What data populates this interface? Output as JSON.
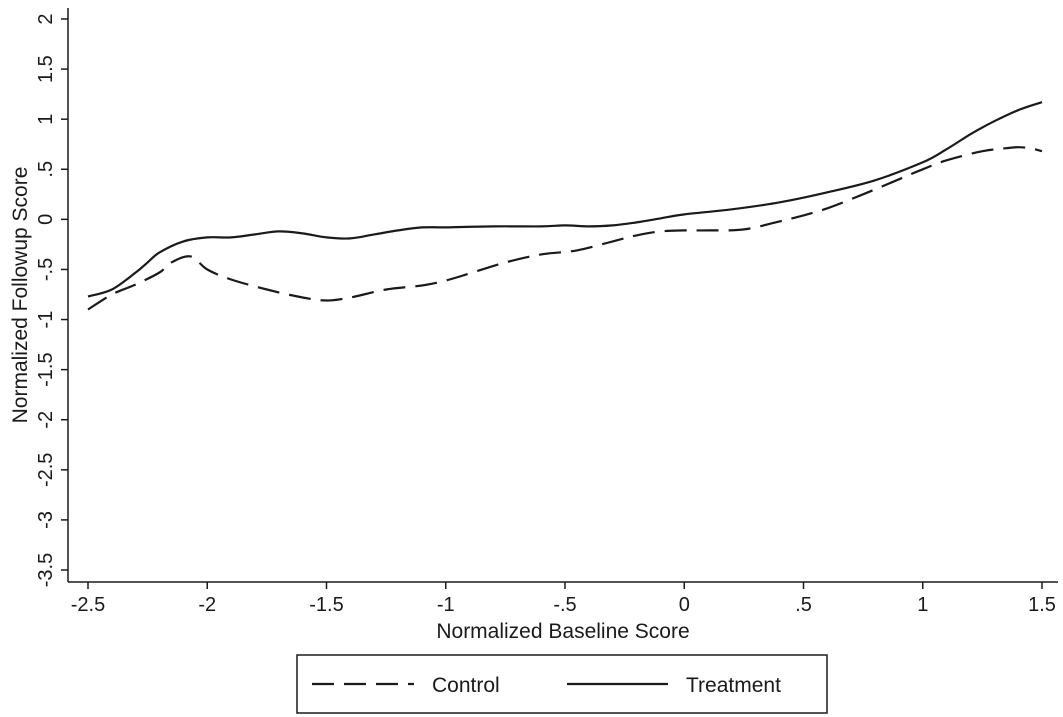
{
  "chart_data": {
    "type": "line",
    "title": "",
    "xlabel": "Normalized Baseline Score",
    "ylabel": "Normalized Followup Score",
    "xlim": [
      -2.5,
      1.5
    ],
    "ylim": [
      -3.5,
      2
    ],
    "xticks": [
      -2.5,
      -2,
      -1.5,
      -1,
      -0.5,
      0,
      0.5,
      1,
      1.5
    ],
    "xtick_labels": [
      "-2.5",
      "-2",
      "-1.5",
      "-1",
      "-.5",
      "0",
      ".5",
      "1",
      "1.5"
    ],
    "yticks": [
      -3.5,
      -3,
      -2.5,
      -2,
      -1.5,
      -1,
      -0.5,
      0,
      0.5,
      1,
      1.5,
      2
    ],
    "ytick_labels": [
      "-3.5",
      "-3",
      "-2.5",
      "-2",
      "-1.5",
      "-1",
      "-.5",
      "0",
      ".5",
      "1",
      "1.5",
      "2"
    ],
    "grid": false,
    "legend_position": "bottom",
    "series": [
      {
        "name": "Control",
        "style": "dashed",
        "color": "#1a1a1a",
        "x": [
          -2.5,
          -2.4,
          -2.3,
          -2.2,
          -2.15,
          -2.07,
          -2.0,
          -1.9,
          -1.75,
          -1.6,
          -1.5,
          -1.4,
          -1.25,
          -1.1,
          -1.0,
          -0.9,
          -0.75,
          -0.6,
          -0.45,
          -0.3,
          -0.2,
          -0.1,
          0.0,
          0.1,
          0.25,
          0.4,
          0.5,
          0.6,
          0.75,
          0.9,
          1.0,
          1.1,
          1.25,
          1.35,
          1.4,
          1.45,
          1.5
        ],
        "y": [
          -0.9,
          -0.75,
          -0.65,
          -0.53,
          -0.43,
          -0.37,
          -0.5,
          -0.6,
          -0.7,
          -0.78,
          -0.81,
          -0.78,
          -0.7,
          -0.66,
          -0.61,
          -0.54,
          -0.43,
          -0.35,
          -0.31,
          -0.22,
          -0.16,
          -0.12,
          -0.11,
          -0.11,
          -0.1,
          -0.02,
          0.04,
          0.11,
          0.25,
          0.4,
          0.5,
          0.59,
          0.68,
          0.71,
          0.72,
          0.71,
          0.68
        ]
      },
      {
        "name": "Treatment",
        "style": "solid",
        "color": "#1a1a1a",
        "x": [
          -2.5,
          -2.4,
          -2.3,
          -2.25,
          -2.2,
          -2.1,
          -2.0,
          -1.9,
          -1.8,
          -1.7,
          -1.6,
          -1.5,
          -1.4,
          -1.3,
          -1.2,
          -1.1,
          -1.0,
          -0.8,
          -0.6,
          -0.5,
          -0.4,
          -0.3,
          -0.2,
          -0.1,
          0.0,
          0.2,
          0.4,
          0.6,
          0.8,
          1.0,
          1.1,
          1.2,
          1.3,
          1.4,
          1.5
        ],
        "y": [
          -0.77,
          -0.7,
          -0.53,
          -0.43,
          -0.33,
          -0.22,
          -0.18,
          -0.18,
          -0.15,
          -0.12,
          -0.14,
          -0.18,
          -0.19,
          -0.15,
          -0.11,
          -0.08,
          -0.08,
          -0.07,
          -0.07,
          -0.06,
          -0.07,
          -0.06,
          -0.03,
          0.01,
          0.05,
          0.1,
          0.17,
          0.27,
          0.39,
          0.57,
          0.7,
          0.85,
          0.98,
          1.09,
          1.17
        ]
      }
    ]
  }
}
